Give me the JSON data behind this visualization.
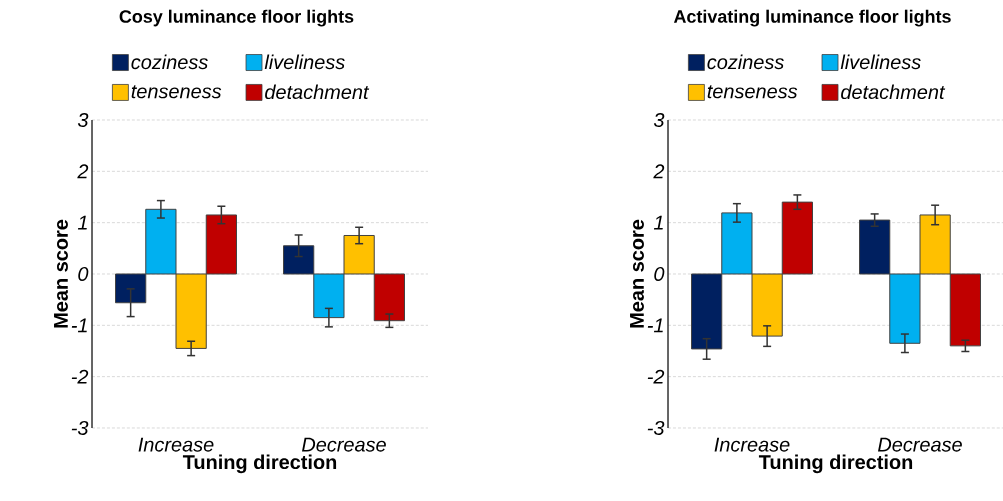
{
  "chart_data": [
    {
      "type": "bar",
      "title": "Cosy luminance floor lights",
      "xlabel": "Tuning direction",
      "ylabel": "Mean score",
      "categories": [
        "Increase",
        "Decrease"
      ],
      "ylim": [
        -3,
        3
      ],
      "yticks": [
        -3,
        -2,
        -1,
        0,
        1,
        2,
        3
      ],
      "grid": "y",
      "legend": "top",
      "series": [
        {
          "name": "coziness",
          "color": "#002060",
          "values": [
            -0.56,
            0.55
          ],
          "errors": [
            0.27,
            0.21
          ]
        },
        {
          "name": "liveliness",
          "color": "#00b0f0",
          "values": [
            1.26,
            -0.85
          ],
          "errors": [
            0.17,
            0.18
          ]
        },
        {
          "name": "tenseness",
          "color": "#ffc000",
          "values": [
            -1.45,
            0.75
          ],
          "errors": [
            0.14,
            0.16
          ]
        },
        {
          "name": "detachment",
          "color": "#c00000",
          "values": [
            1.15,
            -0.91
          ],
          "errors": [
            0.17,
            0.13
          ]
        }
      ]
    },
    {
      "type": "bar",
      "title": "Activating luminance floor lights",
      "xlabel": "Tuning direction",
      "ylabel": "Mean score",
      "categories": [
        "Increase",
        "Decrease"
      ],
      "ylim": [
        -3,
        3
      ],
      "yticks": [
        -3,
        -2,
        -1,
        0,
        1,
        2,
        3
      ],
      "grid": "y",
      "legend": "top",
      "series": [
        {
          "name": "coziness",
          "color": "#002060",
          "values": [
            -1.46,
            1.05
          ],
          "errors": [
            0.2,
            0.12
          ]
        },
        {
          "name": "liveliness",
          "color": "#00b0f0",
          "values": [
            1.19,
            -1.35
          ],
          "errors": [
            0.18,
            0.18
          ]
        },
        {
          "name": "tenseness",
          "color": "#ffc000",
          "values": [
            -1.21,
            1.15
          ],
          "errors": [
            0.2,
            0.19
          ]
        },
        {
          "name": "detachment",
          "color": "#c00000",
          "values": [
            1.4,
            -1.4
          ],
          "errors": [
            0.14,
            0.11
          ]
        }
      ]
    }
  ]
}
